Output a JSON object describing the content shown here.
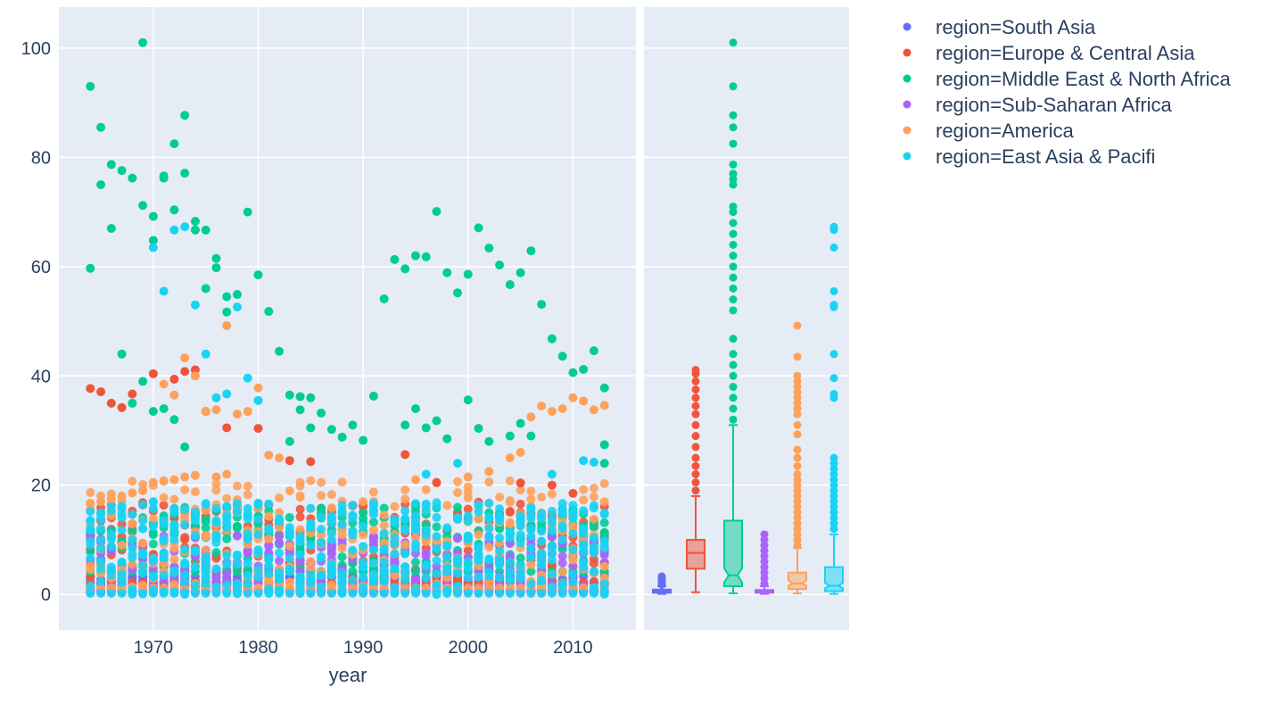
{
  "chart_data": {
    "type": "scatter",
    "x_axis": {
      "title": "year",
      "ticks": [
        1970,
        1980,
        1990,
        2000,
        2010
      ],
      "range": [
        1961,
        2016
      ]
    },
    "y_axis": {
      "ticks": [
        0,
        20,
        40,
        60,
        80,
        100
      ],
      "range": [
        -6.5,
        107.5
      ]
    },
    "grid": true,
    "legend_placement": "top-right outside",
    "marginal": "box",
    "series": [
      {
        "name": "region=South Asia",
        "color": "#636efa",
        "band": [
          0.3,
          3.5
        ],
        "box": {
          "q1": 0.3,
          "median": 0.6,
          "q3": 0.9,
          "lower_fence": 0.1,
          "upper_fence": 1.5
        },
        "outliers": [
          1.8,
          2.1,
          2.4,
          2.7,
          3.0,
          3.3
        ]
      },
      {
        "name": "region=Europe & Central Asia",
        "color": "#ef553b",
        "band": [
          2,
          17
        ],
        "points": [
          [
            1964,
            37.7
          ],
          [
            1965,
            37.1
          ],
          [
            1966,
            35.0
          ],
          [
            1967,
            34.2
          ],
          [
            1968,
            36.7
          ],
          [
            1970,
            40.4
          ],
          [
            1972,
            39.4
          ],
          [
            1973,
            40.8
          ],
          [
            1974,
            41.1
          ],
          [
            1975,
            33.5
          ],
          [
            1977,
            30.5
          ],
          [
            1980,
            30.4
          ],
          [
            1983,
            24.5
          ],
          [
            1985,
            24.3
          ],
          [
            1994,
            25.6
          ],
          [
            1997,
            20.5
          ],
          [
            2005,
            20.4
          ],
          [
            2008,
            20.0
          ],
          [
            2010,
            18.5
          ]
        ],
        "box": {
          "q1": 4.7,
          "median": 7.6,
          "q3": 10.0,
          "lower_fence": 0.4,
          "upper_fence": 18.0
        },
        "outliers": [
          19,
          20.5,
          22,
          23.5,
          25,
          27,
          29,
          31,
          33,
          34.5,
          36,
          37.5,
          39,
          40.4,
          41.1
        ]
      },
      {
        "name": "region=Middle East & North Africa",
        "color": "#00cc96",
        "band": [
          4,
          16
        ],
        "points": [
          [
            1964,
            93.0
          ],
          [
            1964,
            59.7
          ],
          [
            1965,
            85.5
          ],
          [
            1965,
            75.0
          ],
          [
            1966,
            78.7
          ],
          [
            1966,
            67.0
          ],
          [
            1967,
            77.6
          ],
          [
            1967,
            44.0
          ],
          [
            1968,
            76.2
          ],
          [
            1968,
            35.0
          ],
          [
            1969,
            101.0
          ],
          [
            1969,
            71.2
          ],
          [
            1969,
            39.0
          ],
          [
            1970,
            69.2
          ],
          [
            1970,
            64.8
          ],
          [
            1970,
            33.5
          ],
          [
            1971,
            76.6
          ],
          [
            1971,
            76.2
          ],
          [
            1971,
            34.0
          ],
          [
            1972,
            82.5
          ],
          [
            1972,
            70.4
          ],
          [
            1972,
            32.0
          ],
          [
            1973,
            87.7
          ],
          [
            1973,
            77.1
          ],
          [
            1973,
            27.0
          ],
          [
            1974,
            68.3
          ],
          [
            1974,
            66.7
          ],
          [
            1975,
            66.7
          ],
          [
            1975,
            56.0
          ],
          [
            1976,
            61.5
          ],
          [
            1976,
            59.8
          ],
          [
            1977,
            54.5
          ],
          [
            1977,
            51.7
          ],
          [
            1978,
            54.9
          ],
          [
            1979,
            70.0
          ],
          [
            1980,
            58.5
          ],
          [
            1981,
            51.8
          ],
          [
            1982,
            44.5
          ],
          [
            1983,
            36.5
          ],
          [
            1983,
            28.0
          ],
          [
            1984,
            36.2
          ],
          [
            1984,
            33.8
          ],
          [
            1985,
            36.0
          ],
          [
            1985,
            30.5
          ],
          [
            1986,
            33.2
          ],
          [
            1987,
            30.2
          ],
          [
            1988,
            28.8
          ],
          [
            1989,
            31.0
          ],
          [
            1990,
            28.2
          ],
          [
            1991,
            36.3
          ],
          [
            1992,
            54.1
          ],
          [
            1993,
            61.3
          ],
          [
            1994,
            59.6
          ],
          [
            1994,
            31.0
          ],
          [
            1995,
            62.0
          ],
          [
            1995,
            34.0
          ],
          [
            1996,
            61.8
          ],
          [
            1996,
            30.5
          ],
          [
            1997,
            70.1
          ],
          [
            1997,
            31.8
          ],
          [
            1998,
            58.9
          ],
          [
            1998,
            28.5
          ],
          [
            1999,
            55.2
          ],
          [
            2000,
            58.6
          ],
          [
            2000,
            35.6
          ],
          [
            2001,
            67.1
          ],
          [
            2001,
            30.4
          ],
          [
            2002,
            63.4
          ],
          [
            2002,
            28.0
          ],
          [
            2003,
            60.3
          ],
          [
            2004,
            56.7
          ],
          [
            2004,
            29.0
          ],
          [
            2005,
            58.9
          ],
          [
            2005,
            31.3
          ],
          [
            2006,
            62.9
          ],
          [
            2006,
            29.0
          ],
          [
            2007,
            53.1
          ],
          [
            2008,
            46.8
          ],
          [
            2009,
            43.6
          ],
          [
            2010,
            40.6
          ],
          [
            2011,
            41.2
          ],
          [
            2012,
            44.6
          ],
          [
            2013,
            37.8
          ],
          [
            2013,
            27.4
          ],
          [
            2013,
            24.0
          ]
        ],
        "box": {
          "q1": 1.5,
          "median": 3.5,
          "q3": 13.5,
          "notch": [
            2.2,
            4.8
          ],
          "lower_fence": 0.2,
          "upper_fence": 31.0
        },
        "outliers": [
          32,
          34,
          36,
          38,
          40,
          42,
          44,
          46.8,
          52,
          54,
          56,
          58,
          60,
          62,
          64,
          66,
          68,
          70,
          71,
          75,
          76,
          77,
          78.7,
          82.5,
          85.5,
          87.7,
          93,
          101
        ]
      },
      {
        "name": "region=Sub-Saharan Africa",
        "color": "#ab63fa",
        "band": [
          0.5,
          11
        ],
        "box": {
          "q1": 0.3,
          "median": 0.5,
          "q3": 0.8,
          "lower_fence": 0.1,
          "upper_fence": 1.5
        },
        "outliers": [
          2,
          3,
          4,
          5,
          6,
          7,
          8,
          9,
          10,
          11
        ]
      },
      {
        "name": "region=America",
        "color": "#ffa15a",
        "band": [
          1,
          21
        ],
        "points": [
          [
            1964,
            16.7
          ],
          [
            1965,
            17.0
          ],
          [
            1966,
            17.5
          ],
          [
            1967,
            18.0
          ],
          [
            1968,
            18.6
          ],
          [
            1969,
            19.0
          ],
          [
            1970,
            20.5
          ],
          [
            1971,
            38.5
          ],
          [
            1971,
            20.8
          ],
          [
            1972,
            36.5
          ],
          [
            1972,
            21.0
          ],
          [
            1973,
            43.3
          ],
          [
            1973,
            21.5
          ],
          [
            1974,
            40.0
          ],
          [
            1974,
            21.8
          ],
          [
            1975,
            33.5
          ],
          [
            1976,
            33.8
          ],
          [
            1976,
            21.5
          ],
          [
            1977,
            49.2
          ],
          [
            1977,
            22.0
          ],
          [
            1978,
            33.0
          ],
          [
            1979,
            33.5
          ],
          [
            1980,
            37.8
          ],
          [
            1981,
            25.5
          ],
          [
            1982,
            25.0
          ],
          [
            1995,
            21.0
          ],
          [
            2000,
            21.5
          ],
          [
            2002,
            22.5
          ],
          [
            2004,
            25.0
          ],
          [
            2005,
            26.0
          ],
          [
            2006,
            32.5
          ],
          [
            2007,
            34.5
          ],
          [
            2008,
            33.5
          ],
          [
            2009,
            34.0
          ],
          [
            2010,
            36.0
          ],
          [
            2011,
            35.4
          ],
          [
            2012,
            33.8
          ],
          [
            2013,
            34.6
          ]
        ],
        "box": {
          "q1": 1.0,
          "median": 2.0,
          "q3": 4.0,
          "notch": [
            1.6,
            2.6
          ],
          "lower_fence": 0.2,
          "upper_fence": 8.5
        },
        "outliers": [
          9,
          10,
          11,
          12,
          13,
          14,
          15,
          16,
          17,
          18,
          19,
          20,
          21,
          22,
          23.5,
          25,
          26.5,
          29.3,
          31,
          33,
          34,
          35,
          36,
          37,
          38,
          39,
          40,
          43.5,
          49.2
        ]
      },
      {
        "name": "region=East Asia & Pacifi",
        "color": "#19d3f3",
        "band": [
          0,
          17
        ],
        "points": [
          [
            1970,
            63.5
          ],
          [
            1971,
            55.5
          ],
          [
            1972,
            66.7
          ],
          [
            1973,
            67.3
          ],
          [
            1974,
            53.0
          ],
          [
            1975,
            44.0
          ],
          [
            1976,
            36.0
          ],
          [
            1977,
            36.7
          ],
          [
            1978,
            52.6
          ],
          [
            1979,
            39.6
          ],
          [
            1980,
            35.5
          ],
          [
            1996,
            22.0
          ],
          [
            1999,
            24.0
          ],
          [
            2008,
            22.0
          ],
          [
            2011,
            24.5
          ],
          [
            2012,
            24.2
          ]
        ],
        "box": {
          "q1": 0.6,
          "median": 1.6,
          "q3": 5.0,
          "notch": [
            1.1,
            2.1
          ],
          "lower_fence": 0.1,
          "upper_fence": 11.0
        },
        "outliers": [
          12,
          13,
          14,
          15,
          16,
          17,
          18,
          19,
          20,
          21,
          22,
          23,
          24,
          25,
          36,
          36.7,
          39.6,
          44,
          52.6,
          53,
          55.5,
          63.5,
          66.7,
          67.3
        ]
      }
    ]
  }
}
